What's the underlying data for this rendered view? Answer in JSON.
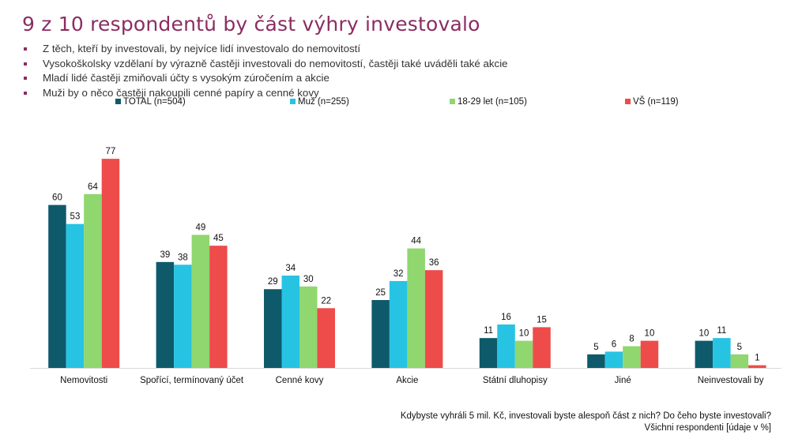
{
  "title": "9 z 10 respondentů by část výhry investovalo",
  "bullets": [
    "Z těch, kteří by investovali, by nejvíce lidí investovalo do nemovitostí",
    "Vysokoškolsky vzdělaní by výrazně častěji investovali do nemovitostí, častěji také uváděli také akcie",
    "Mladí lidé častěji zmiňovali účty s vysokým zúročením a akcie",
    "Muži by o něco častěji nakoupili cenné papíry a cenné kovy"
  ],
  "footnote": {
    "question": "Kdybyste vyhráli 5 mil. Kč, investovali byste alespoň část z nich? Do čeho byste investovali?",
    "base": "Všichni respondenti [údaje v %]"
  },
  "chart_data": {
    "type": "bar",
    "categories": [
      "Nemovitosti",
      "Spořící, termínovaný účet",
      "Cenné kovy",
      "Akcie",
      "Státní dluhopisy",
      "Jiné",
      "Neinvestovali by"
    ],
    "series": [
      {
        "name": "TOTAL (n=504)",
        "color": "#0e5a6b",
        "values": [
          60,
          39,
          29,
          25,
          11,
          5,
          10
        ]
      },
      {
        "name": "Muž (n=255)",
        "color": "#27c3e3",
        "values": [
          53,
          38,
          34,
          32,
          16,
          6,
          11
        ]
      },
      {
        "name": "18-29 let (n=105)",
        "color": "#8fd76e",
        "values": [
          64,
          49,
          30,
          44,
          10,
          8,
          5
        ]
      },
      {
        "name": "VŠ (n=119)",
        "color": "#ee4b4b",
        "values": [
          77,
          45,
          22,
          36,
          15,
          10,
          1
        ]
      }
    ],
    "legend_position": "top",
    "ylim": [
      0,
      80
    ],
    "grid": false
  }
}
